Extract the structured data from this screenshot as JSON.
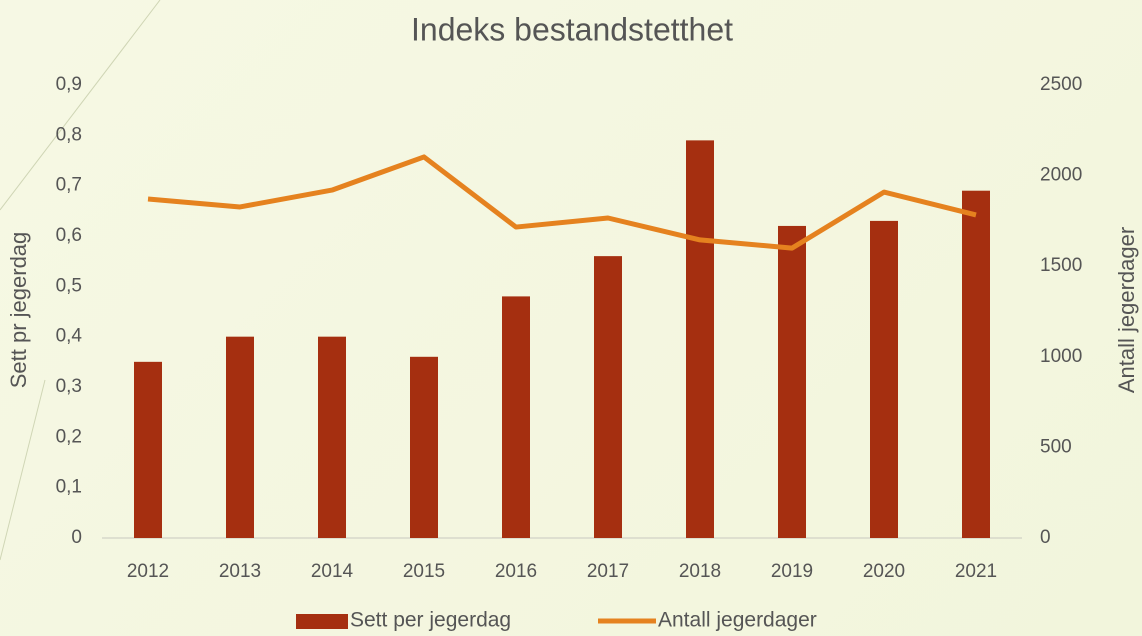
{
  "chart_data": {
    "type": "bar_line",
    "title": "Indeks bestandstetthet",
    "y_label": "Sett pr jegerdag",
    "y2_label": "Antall jegerdager",
    "categories": [
      "2012",
      "2013",
      "2014",
      "2015",
      "2016",
      "2017",
      "2018",
      "2019",
      "2020",
      "2021"
    ],
    "series": [
      {
        "name": "Sett per jegerdag",
        "type": "bar",
        "color": "#a52f10",
        "values": [
          0.35,
          0.4,
          0.4,
          0.36,
          0.48,
          0.56,
          0.79,
          0.62,
          0.63,
          0.69
        ]
      },
      {
        "name": "Antall jegerdager",
        "type": "line",
        "axis": "y2",
        "color": "#e5821f",
        "values": [
          1871,
          1827,
          1920,
          2103,
          1716,
          1766,
          1645,
          1600,
          1909,
          1783
        ]
      }
    ],
    "ylim": [
      0,
      0.9
    ],
    "yticks": [
      0,
      {
        "value": 0.1,
        "label": "0,1"
      },
      {
        "value": 0.2,
        "label": "0,2"
      },
      {
        "value": 0.3,
        "label": "0,3"
      },
      {
        "value": 0.4,
        "label": "0,4"
      },
      {
        "value": 0.5,
        "label": "0,5"
      },
      {
        "value": 0.6,
        "label": "0,6"
      },
      {
        "value": 0.7,
        "label": "0,7"
      },
      {
        "value": 0.8,
        "label": "0,8"
      },
      {
        "value": 0.9,
        "label": "0,9"
      }
    ],
    "y2lim": [
      0,
      2500
    ],
    "y2ticks": [
      0,
      500,
      1000,
      1500,
      2000,
      2500
    ],
    "grid": false,
    "legend": "bottom"
  }
}
